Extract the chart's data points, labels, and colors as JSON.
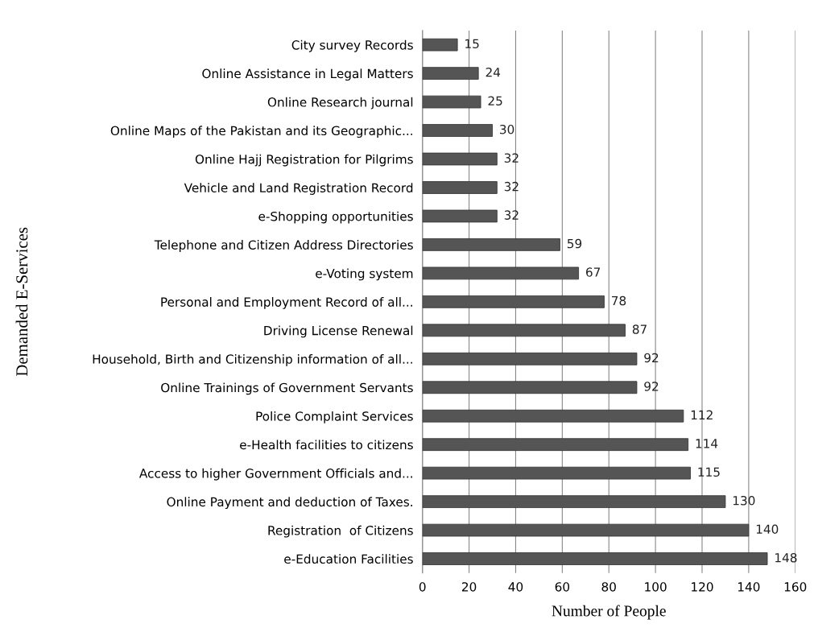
{
  "chart_data": {
    "type": "bar",
    "orientation": "horizontal",
    "categories": [
      "City survey Records",
      "Online Assistance in Legal Matters",
      "Online Research journal",
      "Online Maps of the Pakistan and its Geographic...",
      "Online Hajj Registration for Pilgrims",
      "Vehicle and Land Registration Record",
      "e-Shopping opportunities",
      "Telephone and Citizen Address Directories",
      "e-Voting system",
      "Personal and Employment Record of all...",
      "Driving License Renewal",
      "Household, Birth and Citizenship information of all...",
      "Online Trainings of Government Servants",
      "Police Complaint Services",
      "e-Health facilities to citizens",
      "Access to higher Government Officials and...",
      "Online Payment and deduction of Taxes.",
      "Registration  of Citizens",
      "e-Education Facilities"
    ],
    "values": [
      15,
      24,
      25,
      30,
      32,
      32,
      32,
      59,
      67,
      78,
      87,
      92,
      92,
      112,
      114,
      115,
      130,
      140,
      148
    ],
    "color": "#555555",
    "data_labels": true,
    "xlabel": "Number of People",
    "ylabel": "Demanded E-Services",
    "xlim": [
      0,
      160
    ],
    "xticks": [
      0,
      20,
      40,
      60,
      80,
      100,
      120,
      140,
      160
    ],
    "grid": "x"
  }
}
